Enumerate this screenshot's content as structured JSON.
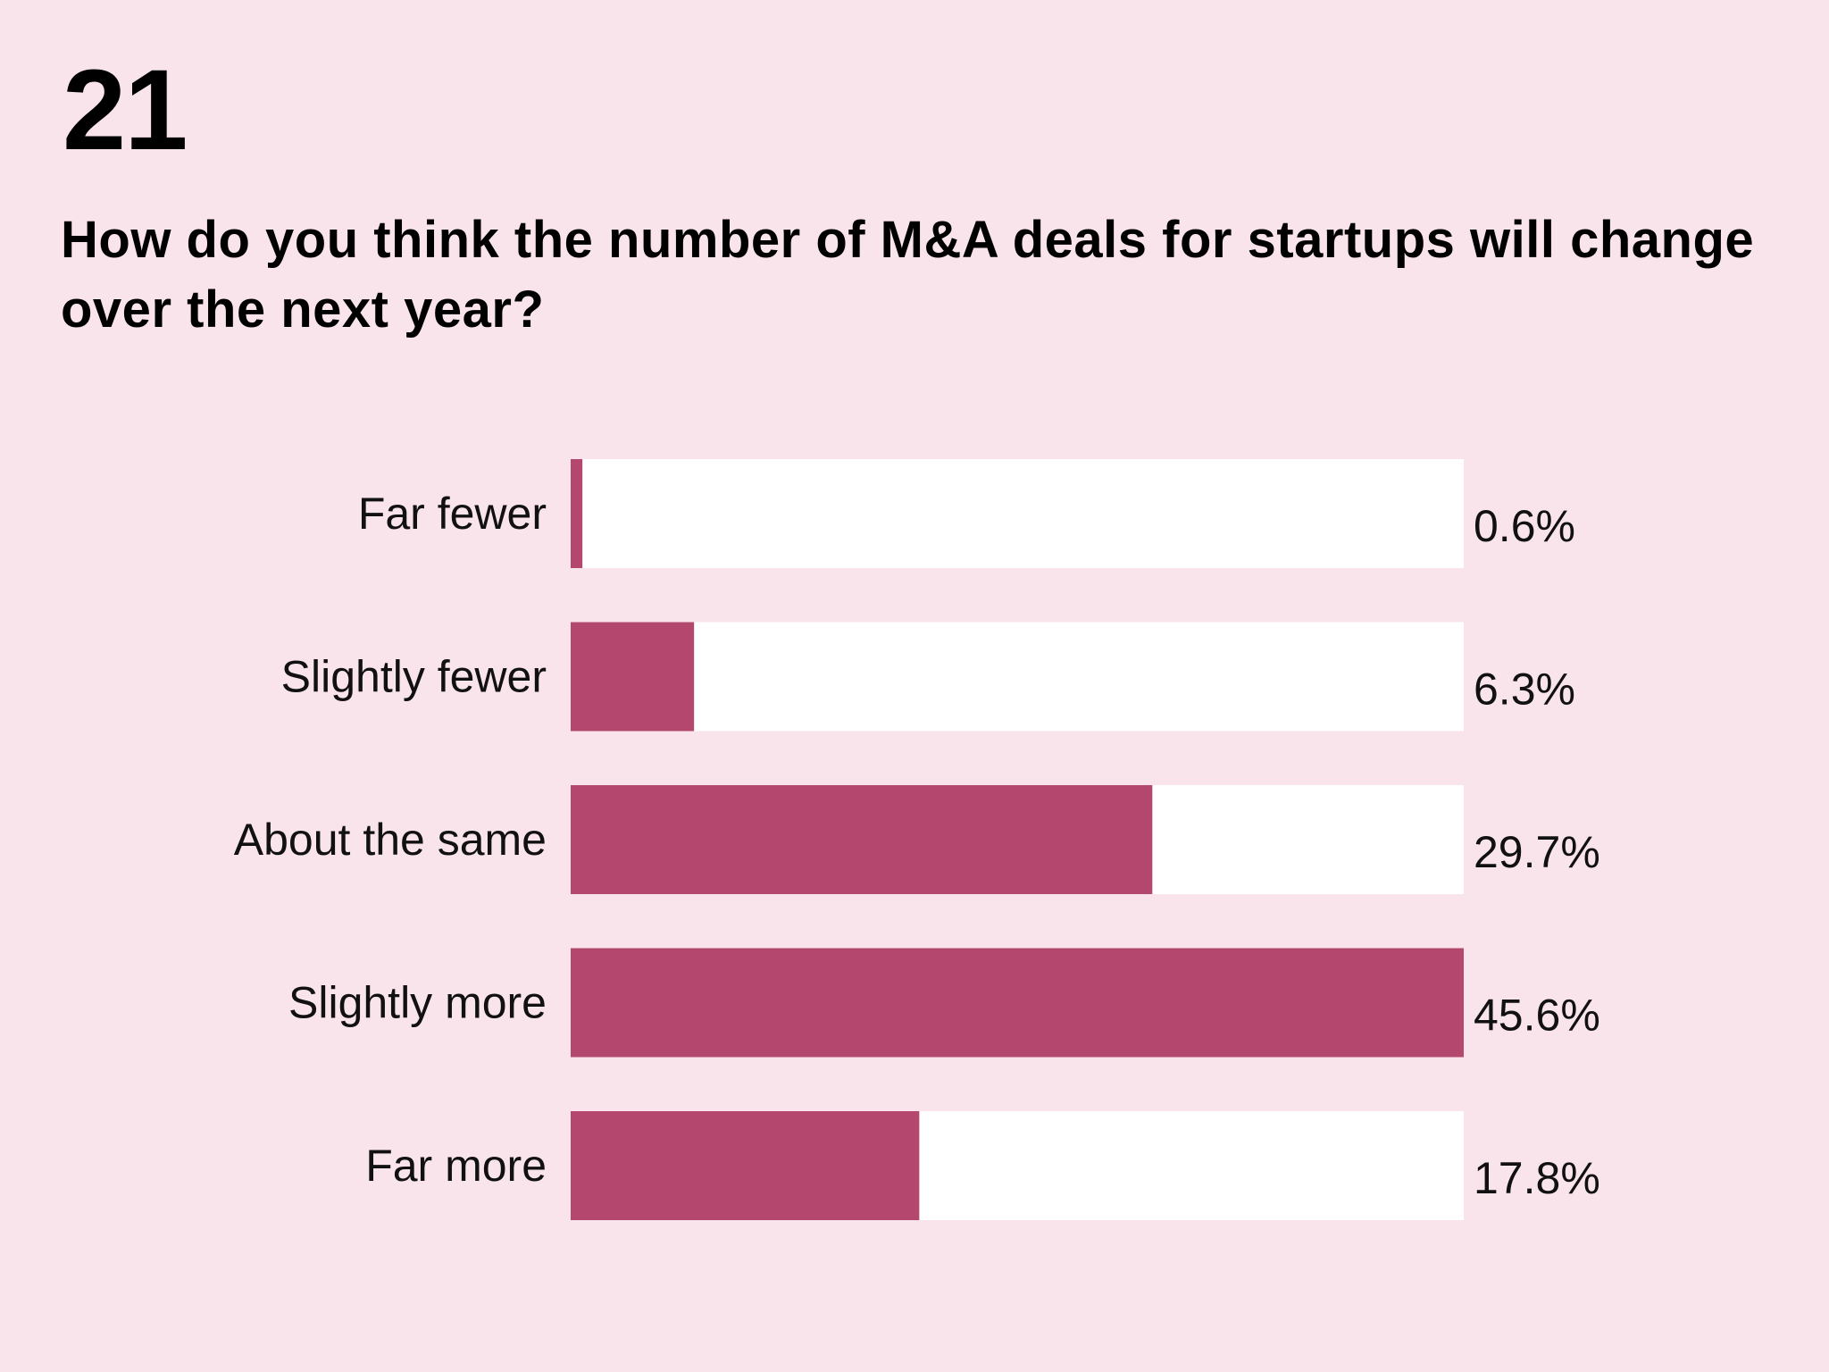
{
  "number": "21",
  "title": "How do you think the number of M&A deals for startups will change over the next year?",
  "colors": {
    "background": "#fae4ec",
    "bar": "#b3476d",
    "track": "#ffffff"
  },
  "chart_data": {
    "type": "bar",
    "orientation": "horizontal",
    "title": "How do you think the number of M&A deals for startups will change over the next year?",
    "categories": [
      "Far fewer",
      "Slightly fewer",
      "About the same",
      "Slightly more",
      "Far more"
    ],
    "values": [
      0.6,
      6.3,
      29.7,
      45.6,
      17.8
    ],
    "value_labels": [
      "0.6%",
      "6.3%",
      "29.7%",
      "45.6%",
      "17.8%"
    ],
    "max_value": 45.6,
    "grid": false,
    "legend": "none"
  }
}
